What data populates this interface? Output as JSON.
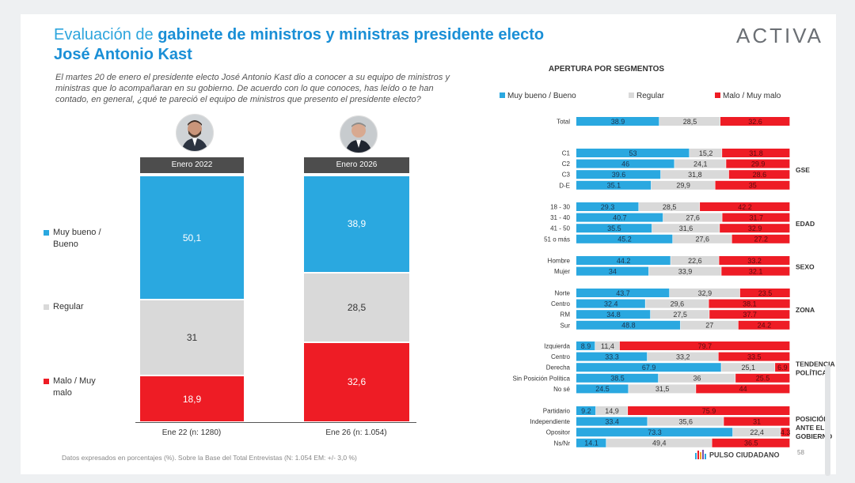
{
  "title": {
    "line1a": "Evaluación de",
    "line1b": "gabinete de ministros y ministras presidente electo",
    "line2": "José Antonio Kast"
  },
  "brand": "ACTIVA",
  "intro": "El martes 20 de enero el presidente electo José Antonio Kast dio a conocer a su equipo de ministros y ministras que lo acompañaran en su gobierno. De acuerdo con lo que conoces, has leído o te han contado, en general, ¿qué te pareció el equipo de ministros que presento el presidente electo?",
  "colors": {
    "good": "#2aa8e0",
    "regular": "#d9d9d9",
    "bad": "#ee1c25",
    "header": "#4d4d4d"
  },
  "left_chart": {
    "legend": {
      "good": "Muy bueno / Bueno",
      "regular": "Regular",
      "bad": "Malo / Muy malo"
    },
    "columns": [
      {
        "header": "Enero 2022",
        "xlabel": "Ene 22 (n: 1280)",
        "good": "50,1",
        "regular": "31",
        "bad": "18,9"
      },
      {
        "header": "Enero 2026",
        "xlabel": "Ene 26 (n: 1.054)",
        "good": "38,9",
        "regular": "28,5",
        "bad": "32,6"
      }
    ]
  },
  "chart_data": [
    {
      "type": "bar",
      "title": "Evaluación de gabinete de ministros y ministras presidente electo",
      "stacked": true,
      "categories": [
        "Ene 22 (n: 1280)",
        "Ene 26 (n: 1.054)"
      ],
      "series": [
        {
          "name": "Muy bueno / Bueno",
          "values": [
            50.1,
            38.9
          ]
        },
        {
          "name": "Regular",
          "values": [
            31,
            28.5
          ]
        },
        {
          "name": "Malo / Muy malo",
          "values": [
            18.9,
            32.6
          ]
        }
      ],
      "ylim": [
        0,
        100
      ]
    },
    {
      "type": "bar",
      "title": "APERTURA POR SEGMENTOS",
      "orientation": "horizontal",
      "stacked": true,
      "legend": [
        "Muy bueno / Bueno",
        "Regular",
        "Malo / Muy malo"
      ],
      "groups": [
        {
          "name": "",
          "rows": [
            {
              "label": "Total",
              "values": [
                38.9,
                28.5,
                32.6
              ],
              "texts": [
                "38.9",
                "28,5",
                "32.6"
              ]
            }
          ]
        },
        {
          "name": "GSE",
          "rows": [
            {
              "label": "C1",
              "values": [
                53,
                15.2,
                31.8
              ],
              "texts": [
                "53",
                "15,2",
                "31.8"
              ]
            },
            {
              "label": "C2",
              "values": [
                46,
                24.1,
                29.9
              ],
              "texts": [
                "46",
                "24,1",
                "29.9"
              ]
            },
            {
              "label": "C3",
              "values": [
                39.6,
                31.8,
                28.6
              ],
              "texts": [
                "39.6",
                "31,8",
                "28.6"
              ]
            },
            {
              "label": "D-E",
              "values": [
                35.1,
                29.9,
                35
              ],
              "texts": [
                "35.1",
                "29,9",
                "35"
              ]
            }
          ]
        },
        {
          "name": "EDAD",
          "rows": [
            {
              "label": "18 - 30",
              "values": [
                29.3,
                28.5,
                42.2
              ],
              "texts": [
                "29.3",
                "28,5",
                "42.2"
              ]
            },
            {
              "label": "31 - 40",
              "values": [
                40.7,
                27.6,
                31.7
              ],
              "texts": [
                "40.7",
                "27,6",
                "31.7"
              ]
            },
            {
              "label": "41 - 50",
              "values": [
                35.5,
                31.6,
                32.9
              ],
              "texts": [
                "35.5",
                "31,6",
                "32.9"
              ]
            },
            {
              "label": "51 o más",
              "values": [
                45.2,
                27.6,
                27.2
              ],
              "texts": [
                "45.2",
                "27,6",
                "27.2"
              ]
            }
          ]
        },
        {
          "name": "SEXO",
          "rows": [
            {
              "label": "Hombre",
              "values": [
                44.2,
                22.6,
                33.2
              ],
              "texts": [
                "44.2",
                "22,6",
                "33.2"
              ]
            },
            {
              "label": "Mujer",
              "values": [
                34,
                33.9,
                32.1
              ],
              "texts": [
                "34",
                "33,9",
                "32.1"
              ]
            }
          ]
        },
        {
          "name": "ZONA",
          "rows": [
            {
              "label": "Norte",
              "values": [
                43.7,
                32.9,
                23.5
              ],
              "texts": [
                "43.7",
                "32,9",
                "23.5"
              ]
            },
            {
              "label": "Centro",
              "values": [
                32.4,
                29.6,
                38.1
              ],
              "texts": [
                "32.4",
                "29,6",
                "38.1"
              ]
            },
            {
              "label": "RM",
              "values": [
                34.8,
                27.5,
                37.7
              ],
              "texts": [
                "34.8",
                "27,5",
                "37.7"
              ]
            },
            {
              "label": "Sur",
              "values": [
                48.8,
                27,
                24.2
              ],
              "texts": [
                "48.8",
                "27",
                "24.2"
              ]
            }
          ]
        },
        {
          "name": "TENDENCIA POLÍTICA",
          "name_lines": [
            "TENDENCIA",
            "POLÍTICA"
          ],
          "rows": [
            {
              "label": "Izquierda",
              "values": [
                8.9,
                11.4,
                79.7
              ],
              "texts": [
                "8.9",
                "11,4",
                "79.7"
              ]
            },
            {
              "label": "Centro",
              "values": [
                33.3,
                33.2,
                33.5
              ],
              "texts": [
                "33.3",
                "33,2",
                "33.5"
              ]
            },
            {
              "label": "Derecha",
              "values": [
                67.9,
                25.1,
                6.9
              ],
              "texts": [
                "67.9",
                "25,1",
                "6.9"
              ]
            },
            {
              "label": "Sin Posición Política",
              "values": [
                38.5,
                36,
                25.5
              ],
              "texts": [
                "38.5",
                "36",
                "25.5"
              ]
            },
            {
              "label": "No sé",
              "values": [
                24.5,
                31.5,
                44
              ],
              "texts": [
                "24.5",
                "31,5",
                "44"
              ]
            }
          ]
        },
        {
          "name": "POSICIÓN ANTE EL GOBIERNO",
          "name_lines": [
            "POSICIÓN",
            "ANTE EL",
            "GOBIERNO"
          ],
          "rows": [
            {
              "label": "Partidario",
              "values": [
                9.2,
                14.9,
                75.9
              ],
              "texts": [
                "9.2",
                "14,9",
                "75.9"
              ]
            },
            {
              "label": "Independiente",
              "values": [
                33.4,
                35.6,
                31
              ],
              "texts": [
                "33.4",
                "35,6",
                "31"
              ]
            },
            {
              "label": "Opositor",
              "values": [
                73.3,
                22.4,
                4.3
              ],
              "texts": [
                "73.3",
                "22,4",
                "4.3"
              ]
            },
            {
              "label": "Ns/Nr",
              "values": [
                14.1,
                49.4,
                36.5
              ],
              "texts": [
                "14.1",
                "49,4",
                "36.5"
              ]
            }
          ]
        }
      ]
    }
  ],
  "segments_title": "APERTURA POR SEGMENTOS",
  "footnote": "Datos expresados en porcentajes (%). Sobre la Base del Total Entrevistas (N: 1.054  EM: +/- 3,0 %)",
  "footer_brand": "PULSO CIUDADANO",
  "page_number": "58"
}
